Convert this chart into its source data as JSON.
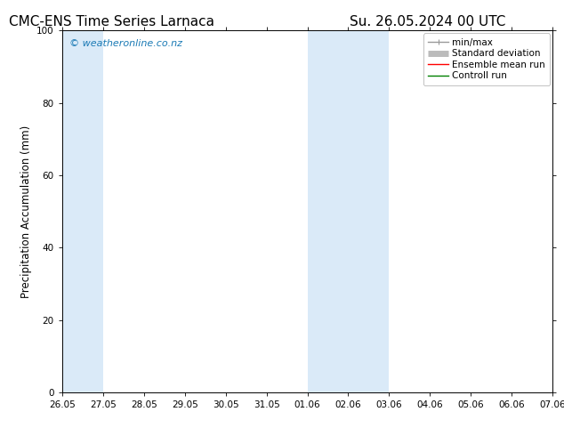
{
  "title_left": "CMC-ENS Time Series Larnaca",
  "title_right": "Su. 26.05.2024 00 UTC",
  "ylabel": "Precipitation Accumulation (mm)",
  "watermark": "© weatheronline.co.nz",
  "watermark_color": "#1a7ab5",
  "ylim": [
    0,
    100
  ],
  "background_color": "#ffffff",
  "plot_bg_color": "#ffffff",
  "shaded_regions": [
    {
      "xstart": "2024-05-26",
      "xend": "2024-05-27",
      "color": "#daeaf8"
    },
    {
      "xstart": "2024-06-01",
      "xend": "2024-06-03",
      "color": "#daeaf8"
    }
  ],
  "xtick_labels": [
    "26.05",
    "27.05",
    "28.05",
    "29.05",
    "30.05",
    "31.05",
    "01.06",
    "02.06",
    "03.06",
    "04.06",
    "05.06",
    "06.06",
    "07.06"
  ],
  "ytick_labels": [
    0,
    20,
    40,
    60,
    80,
    100
  ],
  "legend_labels": [
    "min/max",
    "Standard deviation",
    "Ensemble mean run",
    "Controll run"
  ],
  "legend_colors": [
    "#999999",
    "#bbbbbb",
    "#ff0000",
    "#008000"
  ],
  "tick_color": "#000000",
  "spine_color": "#000000",
  "font_size_title": 11,
  "font_size_legend": 7.5,
  "font_size_ticks": 7.5,
  "font_size_ylabel": 8.5,
  "font_size_watermark": 8
}
